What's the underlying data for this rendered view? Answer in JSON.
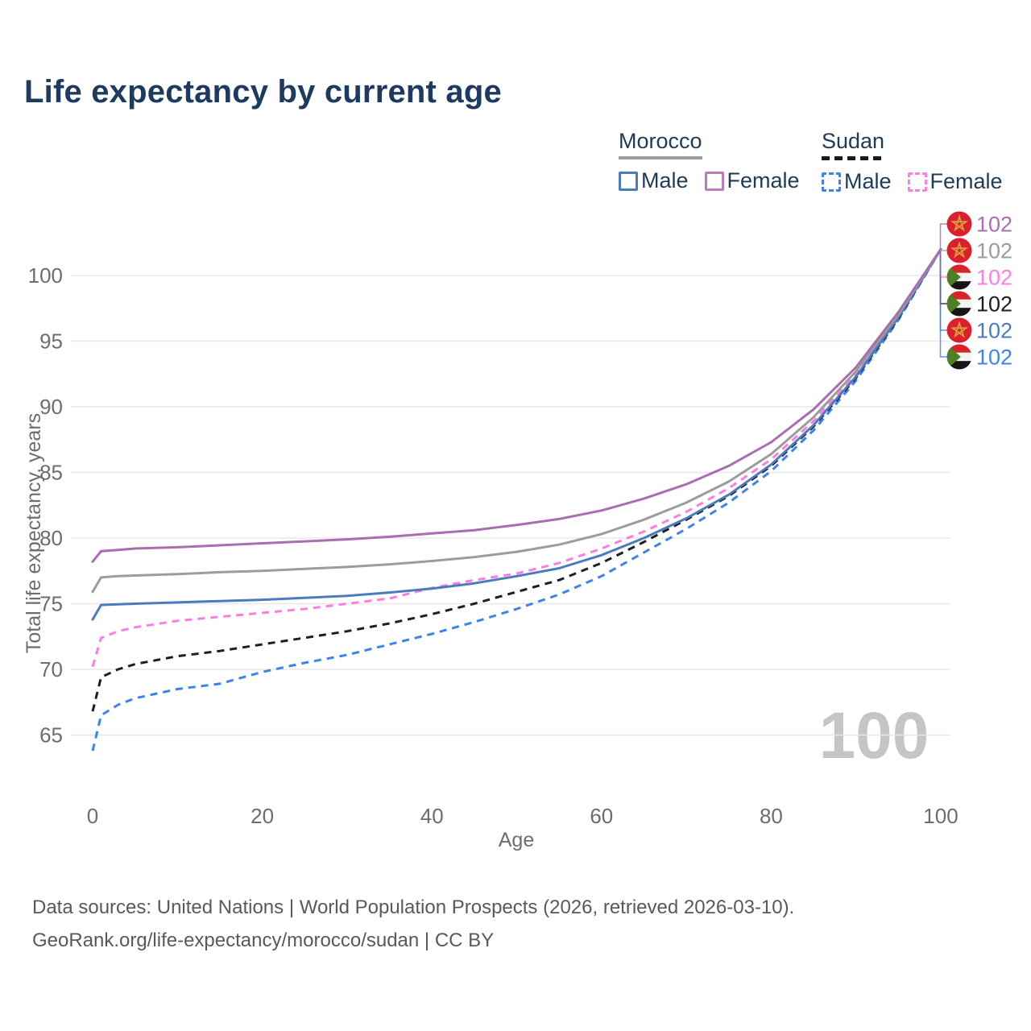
{
  "title": "Life expectancy by current age",
  "legend": {
    "groups": [
      {
        "id": "morocco",
        "label": "Morocco",
        "line_style": "solid",
        "line_color": "#9c9c9c",
        "items": [
          {
            "label": "Male",
            "color": "#4a7cbd",
            "dashed": false
          },
          {
            "label": "Female",
            "color": "#bb7cba",
            "dashed": false
          }
        ]
      },
      {
        "id": "sudan",
        "label": "Sudan",
        "line_style": "dashed",
        "line_color": "#1a1a1a",
        "items": [
          {
            "label": "Male",
            "color": "#3e82f0",
            "dashed": true
          },
          {
            "label": "Female",
            "color": "#ff7de2",
            "dashed": true
          }
        ]
      }
    ]
  },
  "watermark": "100",
  "footer": {
    "line1": "Data sources: United Nations | World Population Prospects (2026, retrieved 2026-03-10).",
    "line2": "GeoRank.org/life-expectancy/morocco/sudan | CC BY"
  },
  "chart_data": {
    "type": "line",
    "title": "Life expectancy by current age",
    "xlabel": "Age",
    "ylabel": "Total life expectancy, years",
    "xlim": [
      0,
      100
    ],
    "ylim": [
      63,
      103
    ],
    "xticks": [
      0,
      20,
      40,
      60,
      80,
      100
    ],
    "yticks": [
      65,
      70,
      75,
      80,
      85,
      90,
      95,
      100
    ],
    "grid": true,
    "legend_position": "top-right",
    "x": [
      0,
      1,
      3,
      5,
      10,
      15,
      20,
      25,
      30,
      35,
      40,
      45,
      50,
      55,
      60,
      65,
      70,
      75,
      80,
      85,
      90,
      95,
      100
    ],
    "series": [
      {
        "id": "sudan-male",
        "name": "Sudan Male",
        "country": "Sudan",
        "sex": "Male",
        "flag": "sudan",
        "color": "#3e82f0",
        "dashed": true,
        "row": 5,
        "end_label": "102",
        "values": [
          63.8,
          66.5,
          67.3,
          67.8,
          68.5,
          68.9,
          69.8,
          70.5,
          71.1,
          71.9,
          72.7,
          73.6,
          74.6,
          75.7,
          77.1,
          78.9,
          80.7,
          82.7,
          85.1,
          88.2,
          92.0,
          96.6,
          102
        ]
      },
      {
        "id": "sudan-both",
        "name": "Sudan",
        "country": "Sudan",
        "sex": "Both",
        "flag": "sudan",
        "color": "#1f1f1f",
        "dashed": true,
        "row": 3,
        "end_label": "102",
        "values": [
          66.8,
          69.4,
          70.0,
          70.4,
          71.0,
          71.4,
          71.9,
          72.4,
          72.9,
          73.5,
          74.2,
          75.0,
          75.9,
          76.8,
          78.1,
          79.7,
          81.4,
          83.2,
          85.5,
          88.5,
          92.2,
          96.7,
          102
        ]
      },
      {
        "id": "sudan-female",
        "name": "Sudan Female",
        "country": "Sudan",
        "sex": "Female",
        "flag": "sudan",
        "color": "#ff7de2",
        "dashed": true,
        "row": 2,
        "end_label": "102",
        "values": [
          70.2,
          72.4,
          72.9,
          73.2,
          73.7,
          74.0,
          74.3,
          74.6,
          75.0,
          75.4,
          76.2,
          76.8,
          77.3,
          78.1,
          79.2,
          80.5,
          82.0,
          83.8,
          86.0,
          88.9,
          92.5,
          96.9,
          102
        ]
      },
      {
        "id": "morocco-male",
        "name": "Morocco Male",
        "country": "Morocco",
        "sex": "Male",
        "flag": "morocco",
        "color": "#4a7cbd",
        "dashed": false,
        "row": 4,
        "end_label": "102",
        "values": [
          73.8,
          74.9,
          74.95,
          75.0,
          75.1,
          75.2,
          75.3,
          75.45,
          75.6,
          75.85,
          76.15,
          76.55,
          77.1,
          77.7,
          78.7,
          80.0,
          81.5,
          83.3,
          85.6,
          88.6,
          92.3,
          96.8,
          102
        ]
      },
      {
        "id": "morocco-both",
        "name": "Morocco",
        "country": "Morocco",
        "sex": "Both",
        "flag": "morocco",
        "color": "#9c9c9c",
        "dashed": false,
        "row": 1,
        "end_label": "102",
        "values": [
          75.9,
          77.0,
          77.1,
          77.15,
          77.25,
          77.4,
          77.5,
          77.65,
          77.8,
          78.0,
          78.25,
          78.55,
          78.95,
          79.5,
          80.3,
          81.4,
          82.7,
          84.3,
          86.4,
          89.2,
          92.7,
          97.0,
          102
        ]
      },
      {
        "id": "morocco-female",
        "name": "Morocco Female",
        "country": "Morocco",
        "sex": "Female",
        "flag": "morocco",
        "color": "#a76fb0",
        "dashed": false,
        "row": 0,
        "end_label": "102",
        "values": [
          78.2,
          79.0,
          79.1,
          79.2,
          79.3,
          79.45,
          79.6,
          79.75,
          79.9,
          80.1,
          80.35,
          80.6,
          81.0,
          81.45,
          82.1,
          83.0,
          84.1,
          85.5,
          87.3,
          89.8,
          93.0,
          97.2,
          102
        ]
      }
    ],
    "colors": {
      "grid": "#e8e8e8",
      "axis_text": "#6d6d6d",
      "watermark": "#c5c5c5",
      "flag_morocco_red": "#dc1f2e",
      "flag_morocco_star": "#d7a53a",
      "flag_sudan_red": "#d8232a",
      "flag_sudan_white": "#f4f4f4",
      "flag_sudan_black": "#161616",
      "flag_sudan_green": "#4e7f25"
    }
  }
}
